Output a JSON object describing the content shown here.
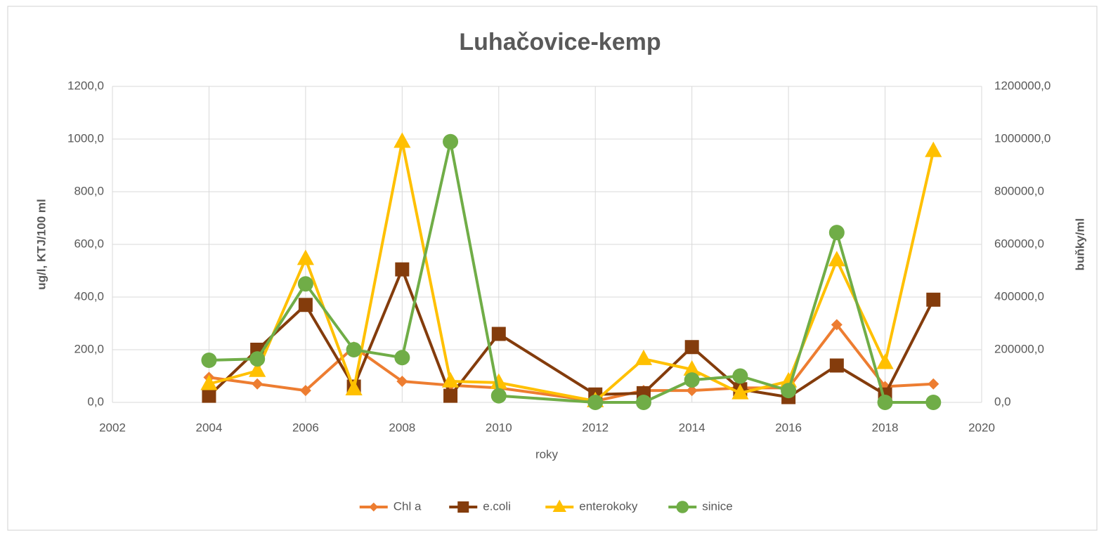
{
  "chart_data": {
    "type": "line",
    "title": "Luhačovice-kemp",
    "xlabel": "roky",
    "ylabel": "ug/l, KTJ/100 ml",
    "y2label": "buňky/ml",
    "x": [
      2004,
      2005,
      2006,
      2007,
      2008,
      2009,
      2010,
      2012,
      2013,
      2014,
      2015,
      2016,
      2017,
      2018,
      2019
    ],
    "xlim": [
      2002,
      2020
    ],
    "xticks": [
      2002,
      2004,
      2006,
      2008,
      2010,
      2012,
      2014,
      2016,
      2018,
      2020
    ],
    "ylim": [
      0,
      1200
    ],
    "yticks": [
      {
        "value": 0,
        "label": "0,0"
      },
      {
        "value": 200,
        "label": "200,0"
      },
      {
        "value": 400,
        "label": "400,0"
      },
      {
        "value": 600,
        "label": "600,0"
      },
      {
        "value": 800,
        "label": "800,0"
      },
      {
        "value": 1000,
        "label": "1000,0"
      },
      {
        "value": 1200,
        "label": "1200,0"
      }
    ],
    "y2lim": [
      0,
      1200000
    ],
    "y2ticks": [
      {
        "value": 0,
        "label": "0,0"
      },
      {
        "value": 200000,
        "label": "200000,0"
      },
      {
        "value": 400000,
        "label": "400000,0"
      },
      {
        "value": 600000,
        "label": "600000,0"
      },
      {
        "value": 800000,
        "label": "800000,0"
      },
      {
        "value": 1000000,
        "label": "1000000,0"
      },
      {
        "value": 1200000,
        "label": "1200000,0"
      }
    ],
    "grid": true,
    "legend": "bottom",
    "series": [
      {
        "name": "Chl a",
        "color": "#ed7d31",
        "marker": "diamond",
        "values": [
          95,
          70,
          45,
          210,
          80,
          65,
          55,
          5,
          45,
          45,
          55,
          55,
          295,
          60,
          70
        ]
      },
      {
        "name": "e.coli",
        "color": "#843c0c",
        "marker": "square",
        "values": [
          25,
          200,
          370,
          60,
          505,
          25,
          260,
          30,
          35,
          210,
          50,
          20,
          140,
          30,
          390
        ]
      },
      {
        "name": "enterokoky",
        "color": "#ffc000",
        "marker": "triangle",
        "values": [
          70,
          120,
          545,
          50,
          990,
          80,
          75,
          5,
          165,
          125,
          35,
          80,
          540,
          150,
          955
        ]
      },
      {
        "name": "sinice",
        "color": "#70ad47",
        "marker": "circle",
        "axis": "y2",
        "values": [
          160000,
          165000,
          450000,
          200000,
          170000,
          990000,
          25000,
          0,
          0,
          85000,
          100000,
          45000,
          645000,
          0,
          0
        ]
      }
    ]
  }
}
